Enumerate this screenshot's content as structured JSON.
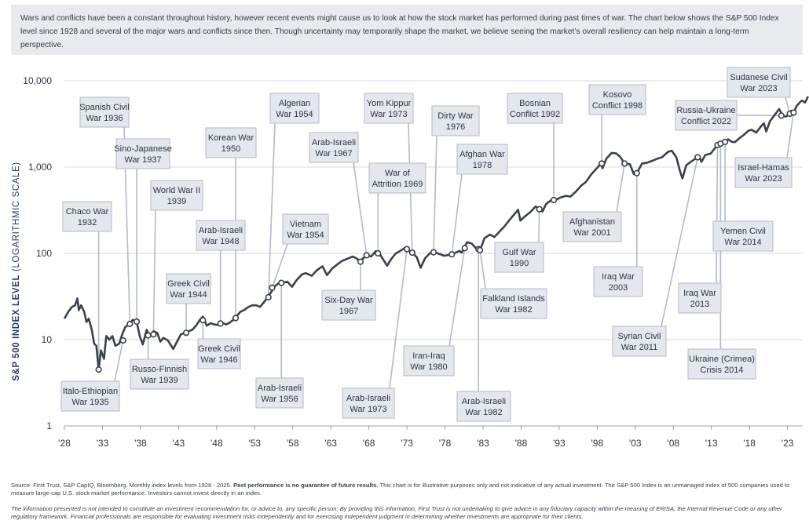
{
  "intro_text": "Wars and conflicts have been a constant throughout history, however recent events might cause us to look at how the stock market has performed during past times of war. The chart below shows the S&P 500 Index level since 1928 and several of the major wars and conflicts since then. Though uncertainty may temporarily shape the market, we believe seeing the market’s overall resiliency can help maintain a long-term perspective.",
  "footer": {
    "source_lead": "Source: First Trust, S&P CapIQ, Bloomberg. Monthly index levels from 1928 - 2025. ",
    "source_bold": "Past performance is no guarantee of future results.",
    "source_tail": " This chart is for illustrative purposes only and not indicative of any actual investment. The S&P 500 Index is an unmanaged index of 500 companies used to measure large-cap U.S. stock market performance. Investors cannot invest directly in an index.",
    "disclaimer": "The information presented is not intended to constitute an investment recommendation for, or advice to, any specific person. By providing this information, First Trust is not undertaking to give advice in any fiduciary capacity within the meaning of ERISA, the Internal Revenue Code or any other regulatory framework. Financial professionals are responsible for evaluating investment risks independently and for exercising independent judgment in determining whether investments are appropriate for their clients."
  },
  "colors": {
    "line": "#3a4150",
    "label_bg": "#e4e7ee",
    "label_border": "#b4bac6",
    "grid": "#d7dae0",
    "ylabel": "#1f3a5f"
  },
  "chart_data": {
    "type": "line",
    "title": "",
    "ylabel_bold": "S&P 500 INDEX LEVEL",
    "ylabel_light": " (LOGARITHMIC SCALE)",
    "y_scale": "log",
    "ylim": [
      1,
      10000
    ],
    "xlim": [
      1928,
      2025
    ],
    "y_ticks": [
      {
        "v": 1,
        "label": "1"
      },
      {
        "v": 10,
        "label": "10"
      },
      {
        "v": 100,
        "label": "100"
      },
      {
        "v": 1000,
        "label": "1,000"
      },
      {
        "v": 10000,
        "label": "10,000"
      }
    ],
    "x_ticks": [
      {
        "v": 1928,
        "label": "'28"
      },
      {
        "v": 1933,
        "label": "'33"
      },
      {
        "v": 1938,
        "label": "'38"
      },
      {
        "v": 1943,
        "label": "'43"
      },
      {
        "v": 1948,
        "label": "'48"
      },
      {
        "v": 1953,
        "label": "'53"
      },
      {
        "v": 1958,
        "label": "'58"
      },
      {
        "v": 1963,
        "label": "'63"
      },
      {
        "v": 1968,
        "label": "'68"
      },
      {
        "v": 1973,
        "label": "'73"
      },
      {
        "v": 1978,
        "label": "'78"
      },
      {
        "v": 1983,
        "label": "'83"
      },
      {
        "v": 1988,
        "label": "'88"
      },
      {
        "v": 1993,
        "label": "'93"
      },
      {
        "v": 1998,
        "label": "'98"
      },
      {
        "v": 2003,
        "label": "'03"
      },
      {
        "v": 2008,
        "label": "'08"
      },
      {
        "v": 2013,
        "label": "'13"
      },
      {
        "v": 2018,
        "label": "'18"
      },
      {
        "v": 2023,
        "label": "'23"
      }
    ],
    "series": [
      {
        "name": "S&P 500 Index",
        "points": [
          [
            1928,
            17.5
          ],
          [
            1928.5,
            21
          ],
          [
            1929,
            24
          ],
          [
            1929.4,
            25
          ],
          [
            1929.7,
            30
          ],
          [
            1929.9,
            22
          ],
          [
            1930.2,
            25
          ],
          [
            1930.6,
            21
          ],
          [
            1930.9,
            16
          ],
          [
            1931.2,
            17.5
          ],
          [
            1931.6,
            13
          ],
          [
            1931.9,
            9
          ],
          [
            1932.2,
            8.5
          ],
          [
            1932.5,
            4.5
          ],
          [
            1932.8,
            7.5
          ],
          [
            1933.2,
            6
          ],
          [
            1933.5,
            11
          ],
          [
            1933.9,
            10
          ],
          [
            1934.3,
            11
          ],
          [
            1934.7,
            8.5
          ],
          [
            1935.2,
            9
          ],
          [
            1935.6,
            11.5
          ],
          [
            1936,
            14
          ],
          [
            1936.5,
            15
          ],
          [
            1937,
            17
          ],
          [
            1937.5,
            16
          ],
          [
            1937.9,
            11
          ],
          [
            1938.3,
            8.8
          ],
          [
            1938.8,
            13
          ],
          [
            1939.2,
            11
          ],
          [
            1939.7,
            12.5
          ],
          [
            1940.2,
            12
          ],
          [
            1940.6,
            9.5
          ],
          [
            1941,
            10.5
          ],
          [
            1941.6,
            9.8
          ],
          [
            1942.3,
            7.8
          ],
          [
            1942.8,
            9.5
          ],
          [
            1943.3,
            11.5
          ],
          [
            1943.8,
            12
          ],
          [
            1944.3,
            12.5
          ],
          [
            1944.8,
            13
          ],
          [
            1945.3,
            14.5
          ],
          [
            1945.8,
            17
          ],
          [
            1946.2,
            18.5
          ],
          [
            1946.7,
            14.5
          ],
          [
            1947.2,
            15.5
          ],
          [
            1947.7,
            15
          ],
          [
            1948.2,
            14.8
          ],
          [
            1948.6,
            16
          ],
          [
            1949.2,
            15
          ],
          [
            1949.6,
            15.5
          ],
          [
            1950.2,
            17
          ],
          [
            1950.6,
            18.5
          ],
          [
            1951.1,
            21
          ],
          [
            1951.6,
            22
          ],
          [
            1952.2,
            24
          ],
          [
            1952.7,
            25
          ],
          [
            1953.2,
            25
          ],
          [
            1953.7,
            24
          ],
          [
            1954.2,
            27
          ],
          [
            1954.7,
            31
          ],
          [
            1955.2,
            36
          ],
          [
            1955.7,
            42
          ],
          [
            1956.3,
            46
          ],
          [
            1956.8,
            46
          ],
          [
            1957.3,
            47
          ],
          [
            1957.9,
            41
          ],
          [
            1958.5,
            49
          ],
          [
            1959.2,
            57
          ],
          [
            1959.7,
            59
          ],
          [
            1960.5,
            55
          ],
          [
            1961.2,
            64
          ],
          [
            1961.9,
            71
          ],
          [
            1962.5,
            56
          ],
          [
            1963.2,
            67
          ],
          [
            1963.9,
            75
          ],
          [
            1964.5,
            82
          ],
          [
            1965.2,
            87
          ],
          [
            1965.9,
            92
          ],
          [
            1966.5,
            86
          ],
          [
            1966.8,
            77
          ],
          [
            1967.3,
            89
          ],
          [
            1967.8,
            95
          ],
          [
            1968.3,
            92
          ],
          [
            1968.9,
            106
          ],
          [
            1969.5,
            96
          ],
          [
            1970.4,
            72
          ],
          [
            1970.9,
            85
          ],
          [
            1971.5,
            99
          ],
          [
            1972.2,
            108
          ],
          [
            1972.9,
            118
          ],
          [
            1973.4,
            105
          ],
          [
            1973.9,
            98
          ],
          [
            1974.3,
            90
          ],
          [
            1974.8,
            68
          ],
          [
            1975.4,
            88
          ],
          [
            1976,
            100
          ],
          [
            1976.5,
            104
          ],
          [
            1977.2,
            99
          ],
          [
            1977.9,
            94
          ],
          [
            1978.5,
            96
          ],
          [
            1979.2,
            100
          ],
          [
            1979.9,
            107
          ],
          [
            1980.2,
            102
          ],
          [
            1980.9,
            135
          ],
          [
            1981.5,
            130
          ],
          [
            1982.2,
            112
          ],
          [
            1982.6,
            108
          ],
          [
            1983.2,
            150
          ],
          [
            1983.9,
            165
          ],
          [
            1984.5,
            155
          ],
          [
            1985.2,
            180
          ],
          [
            1985.9,
            210
          ],
          [
            1986.5,
            245
          ],
          [
            1987.6,
            320
          ],
          [
            1987.9,
            240
          ],
          [
            1988.5,
            268
          ],
          [
            1989.2,
            300
          ],
          [
            1989.9,
            350
          ],
          [
            1990.5,
            320
          ],
          [
            1990.8,
            305
          ],
          [
            1991.3,
            375
          ],
          [
            1991.9,
            410
          ],
          [
            1992.5,
            415
          ],
          [
            1993.2,
            445
          ],
          [
            1993.9,
            465
          ],
          [
            1994.5,
            455
          ],
          [
            1995.2,
            520
          ],
          [
            1995.9,
            610
          ],
          [
            1996.5,
            670
          ],
          [
            1997.2,
            820
          ],
          [
            1997.9,
            960
          ],
          [
            1998.5,
            1100
          ],
          [
            1998.7,
            970
          ],
          [
            1999.2,
            1250
          ],
          [
            1999.9,
            1460
          ],
          [
            2000.5,
            1440
          ],
          [
            2001,
            1320
          ],
          [
            2001.6,
            1100
          ],
          [
            2002.3,
            1080
          ],
          [
            2002.8,
            830
          ],
          [
            2003.2,
            850
          ],
          [
            2003.9,
            1100
          ],
          [
            2004.5,
            1120
          ],
          [
            2005.2,
            1180
          ],
          [
            2005.9,
            1250
          ],
          [
            2006.5,
            1300
          ],
          [
            2007.3,
            1500
          ],
          [
            2007.8,
            1550
          ],
          [
            2008.4,
            1300
          ],
          [
            2008.9,
            880
          ],
          [
            2009.2,
            740
          ],
          [
            2009.7,
            1050
          ],
          [
            2010.3,
            1150
          ],
          [
            2010.9,
            1250
          ],
          [
            2011.4,
            1330
          ],
          [
            2011.7,
            1150
          ],
          [
            2012.2,
            1380
          ],
          [
            2012.9,
            1430
          ],
          [
            2013.4,
            1630
          ],
          [
            2013.9,
            1830
          ],
          [
            2014.5,
            1950
          ],
          [
            2015.2,
            2100
          ],
          [
            2015.7,
            1960
          ],
          [
            2016.1,
            1950
          ],
          [
            2016.7,
            2170
          ],
          [
            2017.3,
            2380
          ],
          [
            2017.9,
            2650
          ],
          [
            2018.3,
            2700
          ],
          [
            2018.9,
            2510
          ],
          [
            2019.5,
            2950
          ],
          [
            2019.9,
            3220
          ],
          [
            2020.2,
            2580
          ],
          [
            2020.7,
            3400
          ],
          [
            2021.2,
            3900
          ],
          [
            2021.9,
            4700
          ],
          [
            2022.4,
            3900
          ],
          [
            2022.8,
            3850
          ],
          [
            2023.2,
            4100
          ],
          [
            2023.5,
            4500
          ],
          [
            2023.8,
            4250
          ],
          [
            2024.2,
            5100
          ],
          [
            2024.6,
            5600
          ],
          [
            2024.9,
            5900
          ],
          [
            2025.3,
            5600
          ],
          [
            2025.7,
            6600
          ]
        ]
      }
    ],
    "annotations": [
      {
        "label": "Spanish Civil\nWar 1936",
        "point": [
          1936.6,
          15.2
        ]
      },
      {
        "label": "Sino-Japanese\nWar 1937",
        "point": [
          1937.5,
          16.2
        ]
      },
      {
        "label": "Chaco War\n1932",
        "point": [
          1932.5,
          4.5
        ]
      },
      {
        "label": "World War II\n1939",
        "point": [
          1939.7,
          11.5
        ]
      },
      {
        "label": "Italo-Ethiopian\nWar 1935",
        "point": [
          1935.7,
          9.8
        ]
      },
      {
        "label": "Russo-Finnish\nWar 1939",
        "point": [
          1939.0,
          11.2
        ]
      },
      {
        "label": "Greek Civil\nWar 1944",
        "point": [
          1944.0,
          12.0
        ]
      },
      {
        "label": "Korean War\n1950",
        "point": [
          1950.5,
          17.8
        ]
      },
      {
        "label": "Arab-Israeli\nWar 1948",
        "point": [
          1948.5,
          15.4
        ]
      },
      {
        "label": "Greek Civil\nWar 1946",
        "point": [
          1946.2,
          16.8
        ]
      },
      {
        "label": "Algerian\nWar 1954",
        "point": [
          1954.8,
          31.0
        ]
      },
      {
        "label": "Vietnam\nWar 1954",
        "point": [
          1955.3,
          40.0
        ]
      },
      {
        "label": "Arab-Israeli\nWar 1956",
        "point": [
          1956.5,
          45.5
        ]
      },
      {
        "label": "Arab-Israeli\nWar 1967",
        "point": [
          1967.7,
          95.0
        ]
      },
      {
        "label": "Six-Day War\n1967",
        "point": [
          1966.9,
          80.0
        ]
      },
      {
        "label": "War of\nAttrition 1969",
        "point": [
          1969.2,
          100.0
        ]
      },
      {
        "label": "Yom Kippur\nWar 1973",
        "point": [
          1973.7,
          102.0
        ]
      },
      {
        "label": "Arab-Israeli\nWar 1973",
        "point": [
          1973.0,
          112.0
        ]
      },
      {
        "label": "Dirty War\n1976",
        "point": [
          1976.5,
          103.0
        ]
      },
      {
        "label": "Afghan War\n1978",
        "point": [
          1978.9,
          97.5
        ]
      },
      {
        "label": "Iran-Iraq\nWar 1980",
        "point": [
          1980.6,
          115.0
        ]
      },
      {
        "label": "Arab-Israeli\nWar 1982",
        "point": [
          1982.4,
          112.0
        ]
      },
      {
        "label": "Falkland Islands\nWar 1982",
        "point": [
          1982.6,
          109.0
        ]
      },
      {
        "label": "Bosnian\nConflict 1992",
        "point": [
          1992.3,
          415.0
        ]
      },
      {
        "label": "Gulf War\n1990",
        "point": [
          1990.4,
          325.0
        ]
      },
      {
        "label": "Kosovo\nConflict 1998",
        "point": [
          1998.6,
          1100.0
        ]
      },
      {
        "label": "Afghanistan\nWar 2001",
        "point": [
          2001.6,
          1100.0
        ]
      },
      {
        "label": "Iraq War\n2003",
        "point": [
          2003.2,
          850.0
        ]
      },
      {
        "label": "Syrian Civil\nWar 2011",
        "point": [
          2011.2,
          1300.0
        ]
      },
      {
        "label": "Russia-Ukraine\nConflict 2022",
        "point": [
          2022.2,
          3950.0
        ]
      },
      {
        "label": "Iraq War\n2013",
        "point": [
          2013.8,
          1800.0
        ]
      },
      {
        "label": "Ukraine (Crimea)\nCrisis 2014",
        "point": [
          2014.2,
          1870.0
        ]
      },
      {
        "label": "Yemen Civil\nWar 2014",
        "point": [
          2014.8,
          1960.0
        ]
      },
      {
        "label": "Sudanese Civil\nWar 2023",
        "point": [
          2023.3,
          4150.0
        ]
      },
      {
        "label": "Israel-Hamas\nWar 2023",
        "point": [
          2023.8,
          4280.0
        ]
      }
    ]
  }
}
